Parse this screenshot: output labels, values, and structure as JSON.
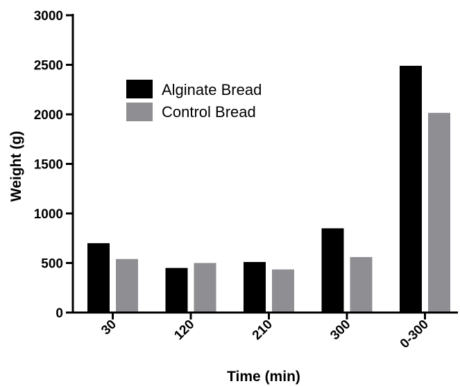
{
  "chart_data": {
    "type": "bar",
    "xlabel": "Time (min)",
    "ylabel": "Weight (g)",
    "categories": [
      "30",
      "120",
      "210",
      "300",
      "0-300"
    ],
    "series": [
      {
        "name": "Alginate Bread",
        "color": "#000000",
        "values": [
          700,
          450,
          510,
          850,
          2490
        ]
      },
      {
        "name": "Control Bread",
        "color": "#8f8f93",
        "values": [
          540,
          500,
          435,
          560,
          2015
        ]
      }
    ],
    "ylim": [
      0,
      3000
    ],
    "yticks": [
      0,
      500,
      1000,
      1500,
      2000,
      2500,
      3000
    ],
    "grid": false,
    "legend_position": "top-left"
  }
}
